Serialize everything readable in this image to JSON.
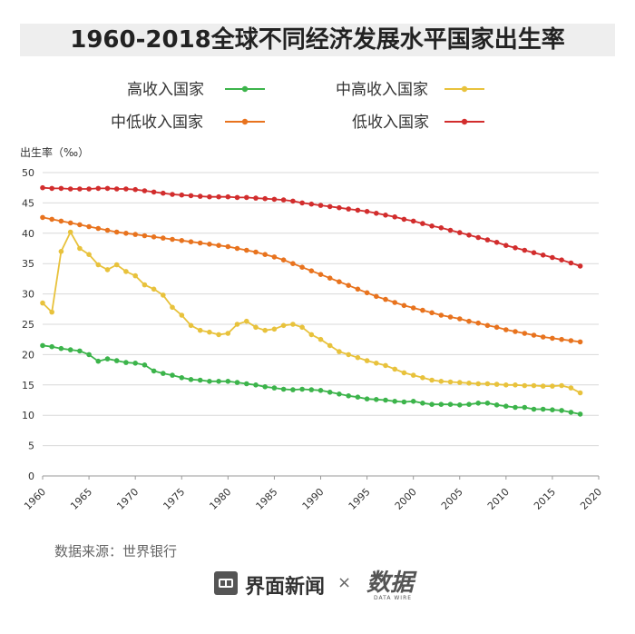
{
  "title": "1960-2018全球不同经济发展水平国家出生率",
  "source": "数据来源：世界银行",
  "footer": {
    "brand": "界面新闻",
    "times": "×",
    "partner_logo_text": "数据",
    "partner_sub": "DATA WIRE"
  },
  "chart_data": {
    "type": "line",
    "title": "1960-2018全球不同经济发展水平国家出生率",
    "ylabel": "出生率（‰）",
    "xlabel": "",
    "ylim": [
      0,
      50
    ],
    "xlim": [
      1960,
      2020
    ],
    "yticks": [
      0,
      5,
      10,
      15,
      20,
      25,
      30,
      35,
      40,
      45,
      50
    ],
    "xticks": [
      1960,
      1965,
      1970,
      1975,
      1980,
      1985,
      1990,
      1995,
      2000,
      2005,
      2010,
      2015,
      2020
    ],
    "grid": true,
    "x": [
      1960,
      1961,
      1962,
      1963,
      1964,
      1965,
      1966,
      1967,
      1968,
      1969,
      1970,
      1971,
      1972,
      1973,
      1974,
      1975,
      1976,
      1977,
      1978,
      1979,
      1980,
      1981,
      1982,
      1983,
      1984,
      1985,
      1986,
      1987,
      1988,
      1989,
      1990,
      1991,
      1992,
      1993,
      1994,
      1995,
      1996,
      1997,
      1998,
      1999,
      2000,
      2001,
      2002,
      2003,
      2004,
      2005,
      2006,
      2007,
      2008,
      2009,
      2010,
      2011,
      2012,
      2013,
      2014,
      2015,
      2016,
      2017,
      2018
    ],
    "series": [
      {
        "name": "高收入国家",
        "color": "#3cb44b",
        "values": [
          21.5,
          21.3,
          21.0,
          20.8,
          20.6,
          20.0,
          18.9,
          19.3,
          19.0,
          18.7,
          18.6,
          18.3,
          17.3,
          16.9,
          16.6,
          16.2,
          15.9,
          15.8,
          15.6,
          15.6,
          15.6,
          15.4,
          15.2,
          15.0,
          14.7,
          14.5,
          14.3,
          14.2,
          14.3,
          14.2,
          14.1,
          13.8,
          13.5,
          13.2,
          13.0,
          12.7,
          12.6,
          12.5,
          12.3,
          12.2,
          12.3,
          12.0,
          11.8,
          11.8,
          11.8,
          11.7,
          11.8,
          12.0,
          12.0,
          11.7,
          11.5,
          11.3,
          11.3,
          11.0,
          11.0,
          10.9,
          10.8,
          10.5,
          10.2
        ]
      },
      {
        "name": "中高收入国家",
        "color": "#e8c23c",
        "values": [
          28.5,
          27.0,
          37.0,
          40.2,
          37.5,
          36.5,
          34.8,
          34.0,
          34.8,
          33.7,
          33.0,
          31.5,
          30.8,
          29.8,
          27.8,
          26.5,
          24.8,
          24.0,
          23.7,
          23.3,
          23.5,
          25.0,
          25.5,
          24.5,
          24.0,
          24.2,
          24.8,
          25.0,
          24.5,
          23.3,
          22.5,
          21.5,
          20.5,
          20.0,
          19.5,
          19.0,
          18.6,
          18.2,
          17.6,
          17.0,
          16.6,
          16.2,
          15.8,
          15.6,
          15.5,
          15.4,
          15.3,
          15.2,
          15.2,
          15.1,
          15.0,
          15.0,
          14.9,
          14.9,
          14.8,
          14.8,
          14.9,
          14.5,
          13.7
        ]
      },
      {
        "name": "中低收入国家",
        "color": "#e8731e",
        "values": [
          42.6,
          42.3,
          42.0,
          41.7,
          41.4,
          41.1,
          40.8,
          40.5,
          40.2,
          40.0,
          39.8,
          39.6,
          39.4,
          39.2,
          39.0,
          38.8,
          38.6,
          38.4,
          38.2,
          38.0,
          37.8,
          37.5,
          37.2,
          36.9,
          36.5,
          36.1,
          35.6,
          35.0,
          34.4,
          33.8,
          33.2,
          32.6,
          32.0,
          31.4,
          30.8,
          30.2,
          29.6,
          29.1,
          28.6,
          28.1,
          27.7,
          27.3,
          26.9,
          26.5,
          26.2,
          25.9,
          25.5,
          25.2,
          24.8,
          24.5,
          24.1,
          23.8,
          23.5,
          23.2,
          22.9,
          22.7,
          22.5,
          22.3,
          22.1
        ]
      },
      {
        "name": "低收入国家",
        "color": "#d22d2d",
        "values": [
          47.5,
          47.4,
          47.4,
          47.3,
          47.3,
          47.3,
          47.4,
          47.4,
          47.3,
          47.3,
          47.2,
          47.0,
          46.8,
          46.6,
          46.4,
          46.3,
          46.2,
          46.1,
          46.0,
          46.0,
          46.0,
          45.9,
          45.9,
          45.8,
          45.7,
          45.6,
          45.5,
          45.3,
          45.0,
          44.8,
          44.6,
          44.4,
          44.2,
          44.0,
          43.8,
          43.6,
          43.3,
          43.0,
          42.7,
          42.3,
          42.0,
          41.6,
          41.2,
          40.9,
          40.5,
          40.1,
          39.7,
          39.3,
          38.9,
          38.5,
          38.0,
          37.6,
          37.2,
          36.8,
          36.4,
          36.0,
          35.6,
          35.1,
          34.6
        ]
      }
    ],
    "legend": [
      {
        "name": "高收入国家",
        "color": "#3cb44b"
      },
      {
        "name": "中高收入国家",
        "color": "#e8c23c"
      },
      {
        "name": "中低收入国家",
        "color": "#e8731e"
      },
      {
        "name": "低收入国家",
        "color": "#d22d2d"
      }
    ]
  }
}
